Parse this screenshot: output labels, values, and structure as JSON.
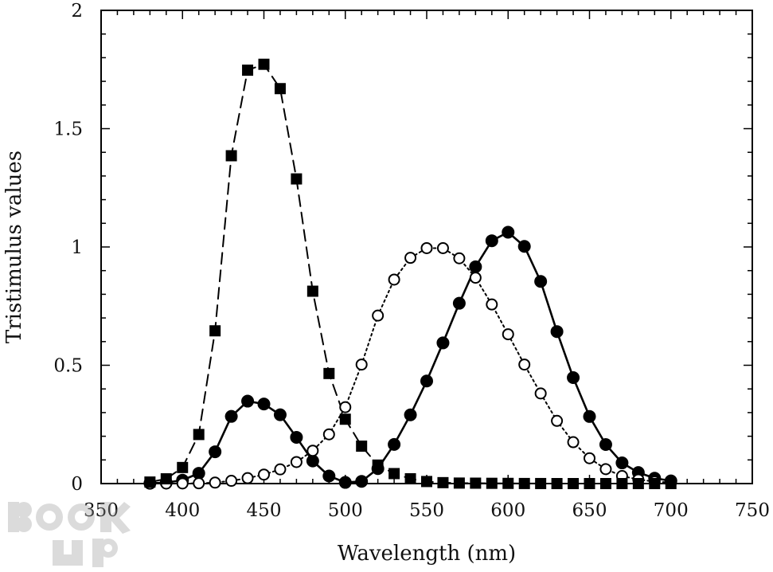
{
  "chart_data": {
    "type": "line",
    "title": "",
    "xlabel": "Wavelength (nm)",
    "ylabel": "Tristimulus values",
    "xlim": [
      350,
      750
    ],
    "ylim": [
      0,
      2
    ],
    "xticks": [
      350,
      400,
      450,
      500,
      550,
      600,
      650,
      700,
      750
    ],
    "yticks": [
      0,
      0.5,
      1,
      1.5,
      2
    ],
    "xtick_labels": [
      "350",
      "400",
      "450",
      "500",
      "550",
      "600",
      "650",
      "700",
      "750"
    ],
    "ytick_labels": [
      "0",
      "0.5",
      "1",
      "1.5",
      "2"
    ],
    "grid": false,
    "legend": "none",
    "x": [
      380,
      390,
      400,
      410,
      420,
      430,
      440,
      450,
      460,
      470,
      480,
      490,
      500,
      510,
      520,
      530,
      540,
      550,
      560,
      570,
      580,
      590,
      600,
      610,
      620,
      630,
      640,
      650,
      660,
      670,
      680,
      690,
      700
    ],
    "series": [
      {
        "marker": "filled-circle",
        "line": "solid",
        "color": "#000000",
        "values": [
          0.0014,
          0.0042,
          0.0143,
          0.0435,
          0.1344,
          0.2839,
          0.3483,
          0.3362,
          0.2908,
          0.1954,
          0.0956,
          0.032,
          0.0049,
          0.0093,
          0.0633,
          0.1655,
          0.2904,
          0.4334,
          0.5945,
          0.7621,
          0.9163,
          1.0263,
          1.0622,
          1.0026,
          0.8544,
          0.6424,
          0.4479,
          0.2835,
          0.1649,
          0.0874,
          0.0468,
          0.0227,
          0.0114
        ]
      },
      {
        "marker": "open-circle",
        "line": "dotted",
        "color": "#000000",
        "values": [
          0.0,
          0.0001,
          0.0004,
          0.0012,
          0.004,
          0.0116,
          0.023,
          0.038,
          0.06,
          0.091,
          0.139,
          0.208,
          0.323,
          0.503,
          0.71,
          0.862,
          0.954,
          0.995,
          0.995,
          0.952,
          0.87,
          0.757,
          0.631,
          0.503,
          0.381,
          0.265,
          0.175,
          0.107,
          0.061,
          0.032,
          0.017,
          0.0082,
          0.0041
        ]
      },
      {
        "marker": "filled-square",
        "line": "dashed",
        "color": "#000000",
        "values": [
          0.0065,
          0.0201,
          0.0679,
          0.2074,
          0.6456,
          1.3856,
          1.7471,
          1.7721,
          1.6692,
          1.2876,
          0.813,
          0.4652,
          0.272,
          0.1582,
          0.0782,
          0.0422,
          0.0203,
          0.0087,
          0.0039,
          0.0021,
          0.0017,
          0.0011,
          0.0008,
          0.0003,
          0.0002,
          0.0,
          0.0,
          0.0,
          0.0,
          0.0,
          0.0,
          0.0,
          0.0
        ]
      }
    ]
  }
}
